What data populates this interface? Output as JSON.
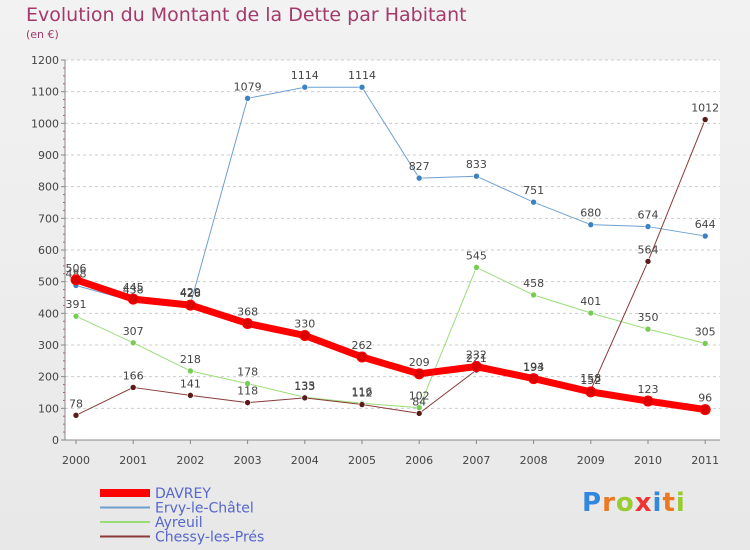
{
  "chart_data": {
    "type": "line",
    "title": "Evolution du Montant de la Dette par Habitant",
    "subtitle": "(en €)",
    "categories": [
      "2000",
      "2001",
      "2002",
      "2003",
      "2004",
      "2005",
      "2006",
      "2007",
      "2008",
      "2009",
      "2010",
      "2011"
    ],
    "ylim": [
      0,
      1200
    ],
    "yticks": [
      0,
      100,
      200,
      300,
      400,
      500,
      600,
      700,
      800,
      900,
      1000,
      1100,
      1200
    ],
    "grid": "horizontal dashed",
    "legend_position": "bottom-left",
    "series": [
      {
        "name": "Ervy-le-Châtel",
        "color": "#6e9fd0",
        "marker": "#3b82c0",
        "width": 1,
        "values": [
          488,
          438,
          429,
          1079,
          1114,
          1114,
          827,
          833,
          751,
          680,
          674,
          644
        ],
        "labels": [
          "488",
          "438",
          "429",
          "1079",
          "1114",
          "1114",
          "827",
          "833",
          "751",
          "680",
          "674",
          "644"
        ]
      },
      {
        "name": "Ayreuil",
        "color": "#99dd77",
        "marker": "#77cc55",
        "width": 1,
        "values": [
          391,
          307,
          218,
          178,
          135,
          116,
          102,
          545,
          458,
          401,
          350,
          305
        ],
        "labels": [
          "391",
          "307",
          "218",
          "178",
          "135",
          "116",
          "102",
          "545",
          "458",
          "401",
          "350",
          "305"
        ]
      },
      {
        "name": "Chessy-les-Prés",
        "color": "#8a3a3a",
        "marker": "#5a1a1a",
        "width": 1,
        "values": [
          78,
          166,
          141,
          118,
          133,
          112,
          84,
          221,
          193,
          158,
          564,
          1012
        ],
        "labels": [
          "78",
          "166",
          "141",
          "118",
          "133",
          "112",
          "84",
          "221",
          "193",
          "158",
          "564",
          "1012"
        ]
      },
      {
        "name": "DAVREY",
        "color": "#ff0000",
        "marker": "#dd0000",
        "width": 7,
        "values": [
          506,
          445,
          426,
          368,
          330,
          262,
          209,
          232,
          194,
          152,
          123,
          96
        ],
        "labels": [
          "506",
          "445",
          "426",
          "368",
          "330",
          "262",
          "209",
          "232",
          "194",
          "152",
          "123",
          "96"
        ]
      }
    ]
  },
  "legend_order": [
    "DAVREY",
    "Ervy-le-Châtel",
    "Ayreuil",
    "Chessy-les-Prés"
  ],
  "brand": {
    "letters": [
      "P",
      "r",
      "o",
      "x",
      "i",
      "t",
      "i"
    ],
    "colors": [
      "#3388dd",
      "#ee7722",
      "#99cc33",
      "#ee3333",
      "#3388dd",
      "#ee7722",
      "#99cc33"
    ]
  }
}
